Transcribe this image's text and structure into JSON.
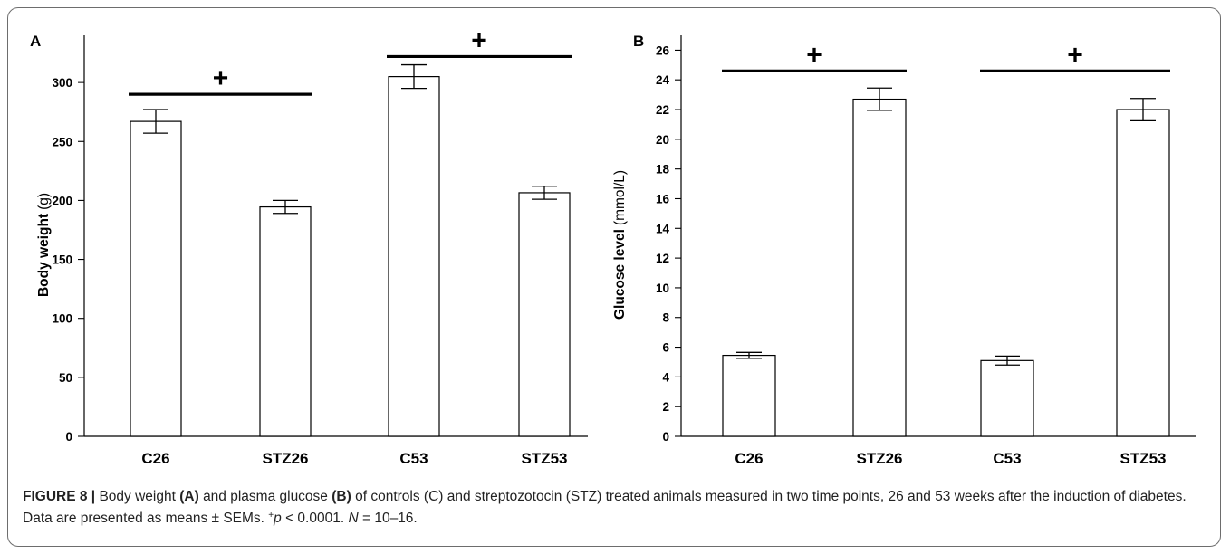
{
  "chart_data": [
    {
      "panel": "A",
      "type": "bar",
      "categories": [
        "C26",
        "STZ26",
        "C53",
        "STZ53"
      ],
      "values": [
        267,
        194.5,
        305,
        206.5
      ],
      "errors": [
        10,
        5.5,
        10,
        5.5
      ],
      "ylabel_bold": "Body weight",
      "ylabel_unit": "(g)",
      "ylim": [
        0,
        340
      ],
      "yticks": [
        0,
        50,
        100,
        150,
        200,
        250,
        300
      ],
      "grid": false,
      "significance": [
        {
          "from": "C26",
          "to": "STZ26",
          "y": 290,
          "marker": "+"
        },
        {
          "from": "C53",
          "to": "STZ53",
          "y": 322,
          "marker": "+"
        }
      ]
    },
    {
      "panel": "B",
      "type": "bar",
      "categories": [
        "C26",
        "STZ26",
        "C53",
        "STZ53"
      ],
      "values": [
        5.45,
        22.7,
        5.1,
        22
      ],
      "errors": [
        0.2,
        0.75,
        0.3,
        0.75
      ],
      "ylabel_bold": "Glucose level",
      "ylabel_unit": "(mmol/L)",
      "ylim": [
        0,
        27
      ],
      "yticks": [
        0,
        2,
        4,
        6,
        8,
        10,
        12,
        14,
        16,
        18,
        20,
        22,
        24,
        26
      ],
      "grid": false,
      "significance": [
        {
          "from": "C26",
          "to": "STZ26",
          "y": 24.6,
          "marker": "+"
        },
        {
          "from": "C53",
          "to": "STZ53",
          "y": 24.6,
          "marker": "+"
        }
      ]
    }
  ],
  "caption": {
    "figure_label": "FIGURE 8 |",
    "text_1": "Body weight",
    "ref_a": "(A)",
    "text_2": "and plasma glucose",
    "ref_b": "(B)",
    "text_3": "of controls (C) and streptozotocin (STZ) treated animals measured in two time points, 26 and 53 weeks after the induction of diabetes. Data are presented as means ± SEMs.",
    "sig_mark": "+",
    "p_var": "p",
    "p_text": "< 0.0001.",
    "n_var": "N",
    "n_text": "= 10–16."
  }
}
